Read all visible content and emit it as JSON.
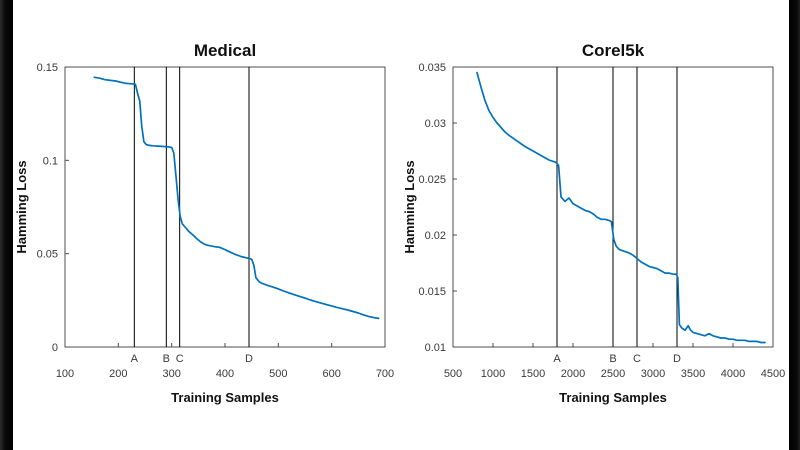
{
  "page": {
    "background_color": "#ffffff",
    "letterbox_color": "#0a0a0a"
  },
  "chart_data": [
    {
      "type": "line",
      "title": "Medical",
      "xlabel": "Training Samples",
      "ylabel": "Hamming Loss",
      "xlim": [
        100,
        700
      ],
      "ylim": [
        0,
        0.15
      ],
      "xticks": [
        100,
        200,
        300,
        400,
        500,
        600,
        700
      ],
      "xtick_labels": [
        "100",
        "200",
        "300",
        "400",
        "500",
        "600",
        "700"
      ],
      "yticks": [
        0,
        0.05,
        0.1,
        0.15
      ],
      "ytick_labels": [
        "0",
        "0.05",
        "0.1",
        "0.15"
      ],
      "grid": false,
      "legend": "none",
      "line_color": "#0072BD",
      "axis_color": "#4d4d4d",
      "text_color": "#3a3a3a",
      "marker_line_color": "#000000",
      "vlines": [
        {
          "x": 230,
          "label": "A"
        },
        {
          "x": 290,
          "label": "B"
        },
        {
          "x": 315,
          "label": "C"
        },
        {
          "x": 445,
          "label": "D"
        }
      ],
      "series": [
        {
          "name": "Hamming Loss",
          "x": [
            155,
            165,
            175,
            185,
            195,
            205,
            215,
            225,
            232,
            236,
            240,
            244,
            248,
            252,
            258,
            265,
            275,
            285,
            295,
            300,
            304,
            308,
            312,
            316,
            320,
            326,
            332,
            340,
            348,
            355,
            362,
            370,
            380,
            390,
            400,
            410,
            420,
            430,
            440,
            446,
            450,
            454,
            458,
            464,
            470,
            480,
            490,
            500,
            510,
            520,
            530,
            540,
            550,
            560,
            570,
            580,
            590,
            600,
            610,
            620,
            630,
            640,
            650,
            660,
            670,
            680,
            688
          ],
          "y": [
            0.1445,
            0.144,
            0.1432,
            0.1428,
            0.1425,
            0.1418,
            0.1412,
            0.141,
            0.1408,
            0.136,
            0.132,
            0.118,
            0.11,
            0.1085,
            0.108,
            0.1078,
            0.1076,
            0.1074,
            0.1072,
            0.1068,
            0.104,
            0.092,
            0.079,
            0.07,
            0.066,
            0.064,
            0.062,
            0.06,
            0.0578,
            0.0562,
            0.055,
            0.0543,
            0.0538,
            0.0534,
            0.0522,
            0.0508,
            0.0495,
            0.0485,
            0.0478,
            0.0474,
            0.047,
            0.044,
            0.0372,
            0.035,
            0.034,
            0.033,
            0.0321,
            0.0311,
            0.03,
            0.029,
            0.028,
            0.0271,
            0.0262,
            0.0252,
            0.0243,
            0.0235,
            0.0227,
            0.022,
            0.0212,
            0.0205,
            0.0198,
            0.019,
            0.0182,
            0.0172,
            0.0163,
            0.0157,
            0.0153
          ]
        }
      ]
    },
    {
      "type": "line",
      "title": "Corel5k",
      "xlabel": "Training Samples",
      "ylabel": "Hamming Loss",
      "xlim": [
        500,
        4500
      ],
      "ylim": [
        0.01,
        0.035
      ],
      "xticks": [
        500,
        1000,
        1500,
        2000,
        2500,
        3000,
        3500,
        4000,
        4500
      ],
      "xtick_labels": [
        "500",
        "1000",
        "1500",
        "2000",
        "2500",
        "3000",
        "3500",
        "4000",
        "4500"
      ],
      "yticks": [
        0.01,
        0.015,
        0.02,
        0.025,
        0.03,
        0.035
      ],
      "ytick_labels": [
        "0.01",
        "0.015",
        "0.02",
        "0.025",
        "0.03",
        "0.035"
      ],
      "grid": false,
      "legend": "none",
      "line_color": "#0072BD",
      "axis_color": "#4d4d4d",
      "text_color": "#3a3a3a",
      "marker_line_color": "#000000",
      "vlines": [
        {
          "x": 1800,
          "label": "A"
        },
        {
          "x": 2500,
          "label": "B"
        },
        {
          "x": 2800,
          "label": "C"
        },
        {
          "x": 3300,
          "label": "D"
        }
      ],
      "series": [
        {
          "name": "Hamming Loss",
          "x": [
            800,
            850,
            900,
            950,
            1000,
            1050,
            1100,
            1150,
            1200,
            1300,
            1400,
            1500,
            1600,
            1700,
            1780,
            1800,
            1820,
            1850,
            1900,
            1950,
            2000,
            2050,
            2100,
            2150,
            2200,
            2250,
            2300,
            2350,
            2400,
            2450,
            2480,
            2510,
            2540,
            2580,
            2620,
            2660,
            2700,
            2750,
            2800,
            2850,
            2900,
            2950,
            3000,
            3050,
            3100,
            3150,
            3200,
            3250,
            3290,
            3310,
            3330,
            3360,
            3400,
            3440,
            3470,
            3500,
            3550,
            3600,
            3650,
            3700,
            3750,
            3800,
            3850,
            3900,
            3950,
            4000,
            4050,
            4100,
            4150,
            4200,
            4250,
            4300,
            4350,
            4400
          ],
          "y": [
            0.0345,
            0.0332,
            0.032,
            0.0311,
            0.0305,
            0.03,
            0.0296,
            0.0292,
            0.0289,
            0.0284,
            0.0279,
            0.0275,
            0.0271,
            0.0267,
            0.0265,
            0.0264,
            0.0262,
            0.0234,
            0.023,
            0.0233,
            0.0228,
            0.0226,
            0.0224,
            0.0222,
            0.0221,
            0.0219,
            0.0216,
            0.0214,
            0.0214,
            0.0213,
            0.0212,
            0.0196,
            0.019,
            0.0187,
            0.0186,
            0.0185,
            0.0184,
            0.0182,
            0.0179,
            0.0176,
            0.0174,
            0.0172,
            0.0171,
            0.017,
            0.0168,
            0.0166,
            0.0166,
            0.0165,
            0.0165,
            0.0162,
            0.012,
            0.0117,
            0.0115,
            0.0119,
            0.0115,
            0.0113,
            0.0112,
            0.0111,
            0.011,
            0.0112,
            0.011,
            0.0109,
            0.0108,
            0.0108,
            0.0107,
            0.0107,
            0.0106,
            0.0106,
            0.0106,
            0.0105,
            0.0105,
            0.0105,
            0.0104,
            0.0104
          ]
        }
      ]
    }
  ]
}
